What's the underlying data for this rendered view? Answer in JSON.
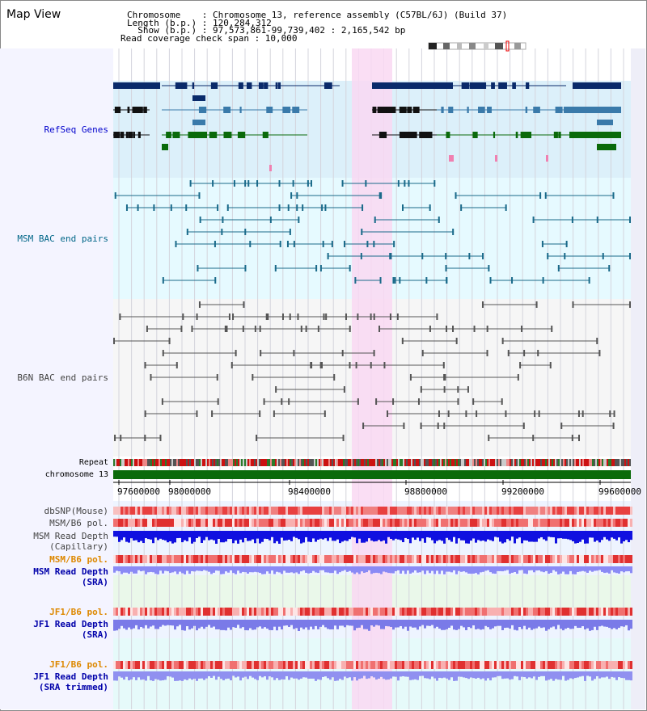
{
  "title": "Map View",
  "header": {
    "line1": "Chromosome    : Chromosome 13, reference assembly (C57BL/6J) (Build 37)",
    "line2": "Length (b.p.) : 120,284,312",
    "line3": "  Show (b.p.) : 97,573,861-99,739,402 : 2,165,542 bp",
    "line4": "Read coverage check span : 10,000"
  },
  "tracks": {
    "refseq": "RefSeq Genes",
    "msm_bac": "MSM BAC end pairs",
    "b6n_bac": "B6N BAC end pairs",
    "repeat": "Repeat",
    "chrom": "chromosome 13",
    "dbsnp": "dbSNP(Mouse)",
    "msm_b6_pol": "MSM/B6 pol.",
    "msm_depth_cap_1": "MSM Read Depth",
    "msm_depth_cap_2": "(Capillary)",
    "msm_b6_pol2": "MSM/B6 pol.",
    "msm_depth_sra_1": "MSM Read Depth",
    "msm_depth_sra_2": "(SRA)",
    "jf1_b6_pol": "JF1/B6 pol.",
    "jf1_depth_1": "JF1 Read Depth",
    "jf1_depth_2": "(SRA)",
    "jf1_b6_pol2": "JF1/B6 pol.",
    "jf1_depth_trim_1": "JF1 Read Depth",
    "jf1_depth_trim_2": "(SRA trimmed)"
  },
  "axis": {
    "ticks": [
      "97600000",
      "98000000",
      "98400000",
      "98800000",
      "99200000",
      "99600000"
    ]
  },
  "colors": {
    "refseq_label": "#0000cc",
    "bac_label": "#006688",
    "b6n_label": "#444444",
    "orange_label": "#dd8800",
    "blue_label": "#0000aa",
    "highlight": "#f9d8f2"
  }
}
